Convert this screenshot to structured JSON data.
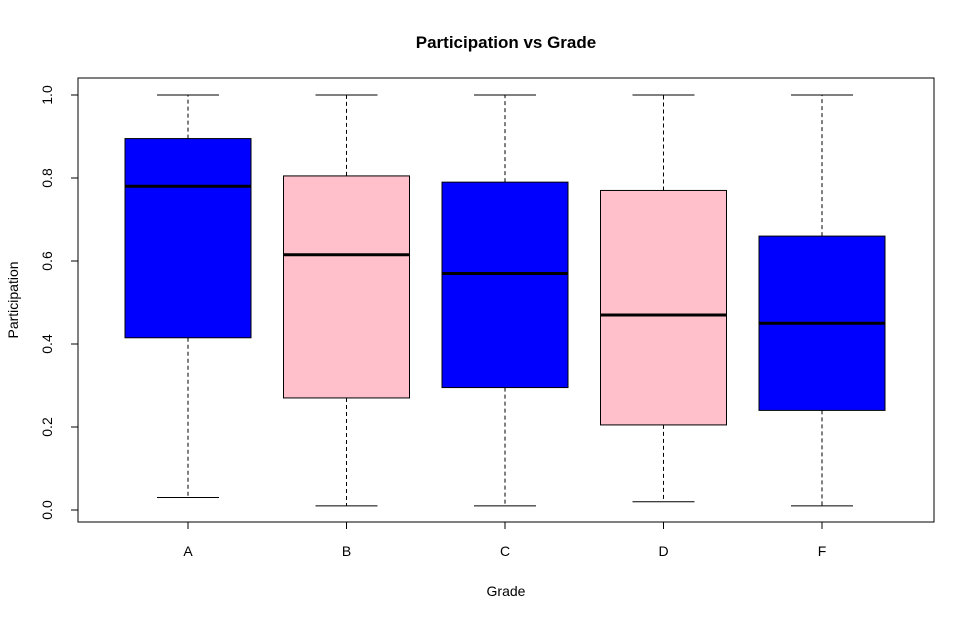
{
  "chart_data": {
    "type": "boxplot",
    "title": "Participation vs Grade",
    "xlabel": "Grade",
    "ylabel": "Participation",
    "ylim": [
      0,
      1
    ],
    "y_ticks": [
      "0.0",
      "0.2",
      "0.4",
      "0.6",
      "0.8",
      "1.0"
    ],
    "grid": false,
    "categories": [
      "A",
      "B",
      "C",
      "D",
      "F"
    ],
    "colors": [
      "#0000ff",
      "#ffc0cb",
      "#0000ff",
      "#ffc0cb",
      "#0000ff"
    ],
    "boxes": [
      {
        "category": "A",
        "min": 0.03,
        "q1": 0.415,
        "median": 0.78,
        "q3": 0.895,
        "max": 1.0
      },
      {
        "category": "B",
        "min": 0.01,
        "q1": 0.27,
        "median": 0.615,
        "q3": 0.805,
        "max": 1.0
      },
      {
        "category": "C",
        "min": 0.01,
        "q1": 0.295,
        "median": 0.57,
        "q3": 0.79,
        "max": 1.0
      },
      {
        "category": "D",
        "min": 0.02,
        "q1": 0.205,
        "median": 0.47,
        "q3": 0.77,
        "max": 1.0
      },
      {
        "category": "F",
        "min": 0.01,
        "q1": 0.24,
        "median": 0.45,
        "q3": 0.66,
        "max": 1.0
      }
    ]
  }
}
